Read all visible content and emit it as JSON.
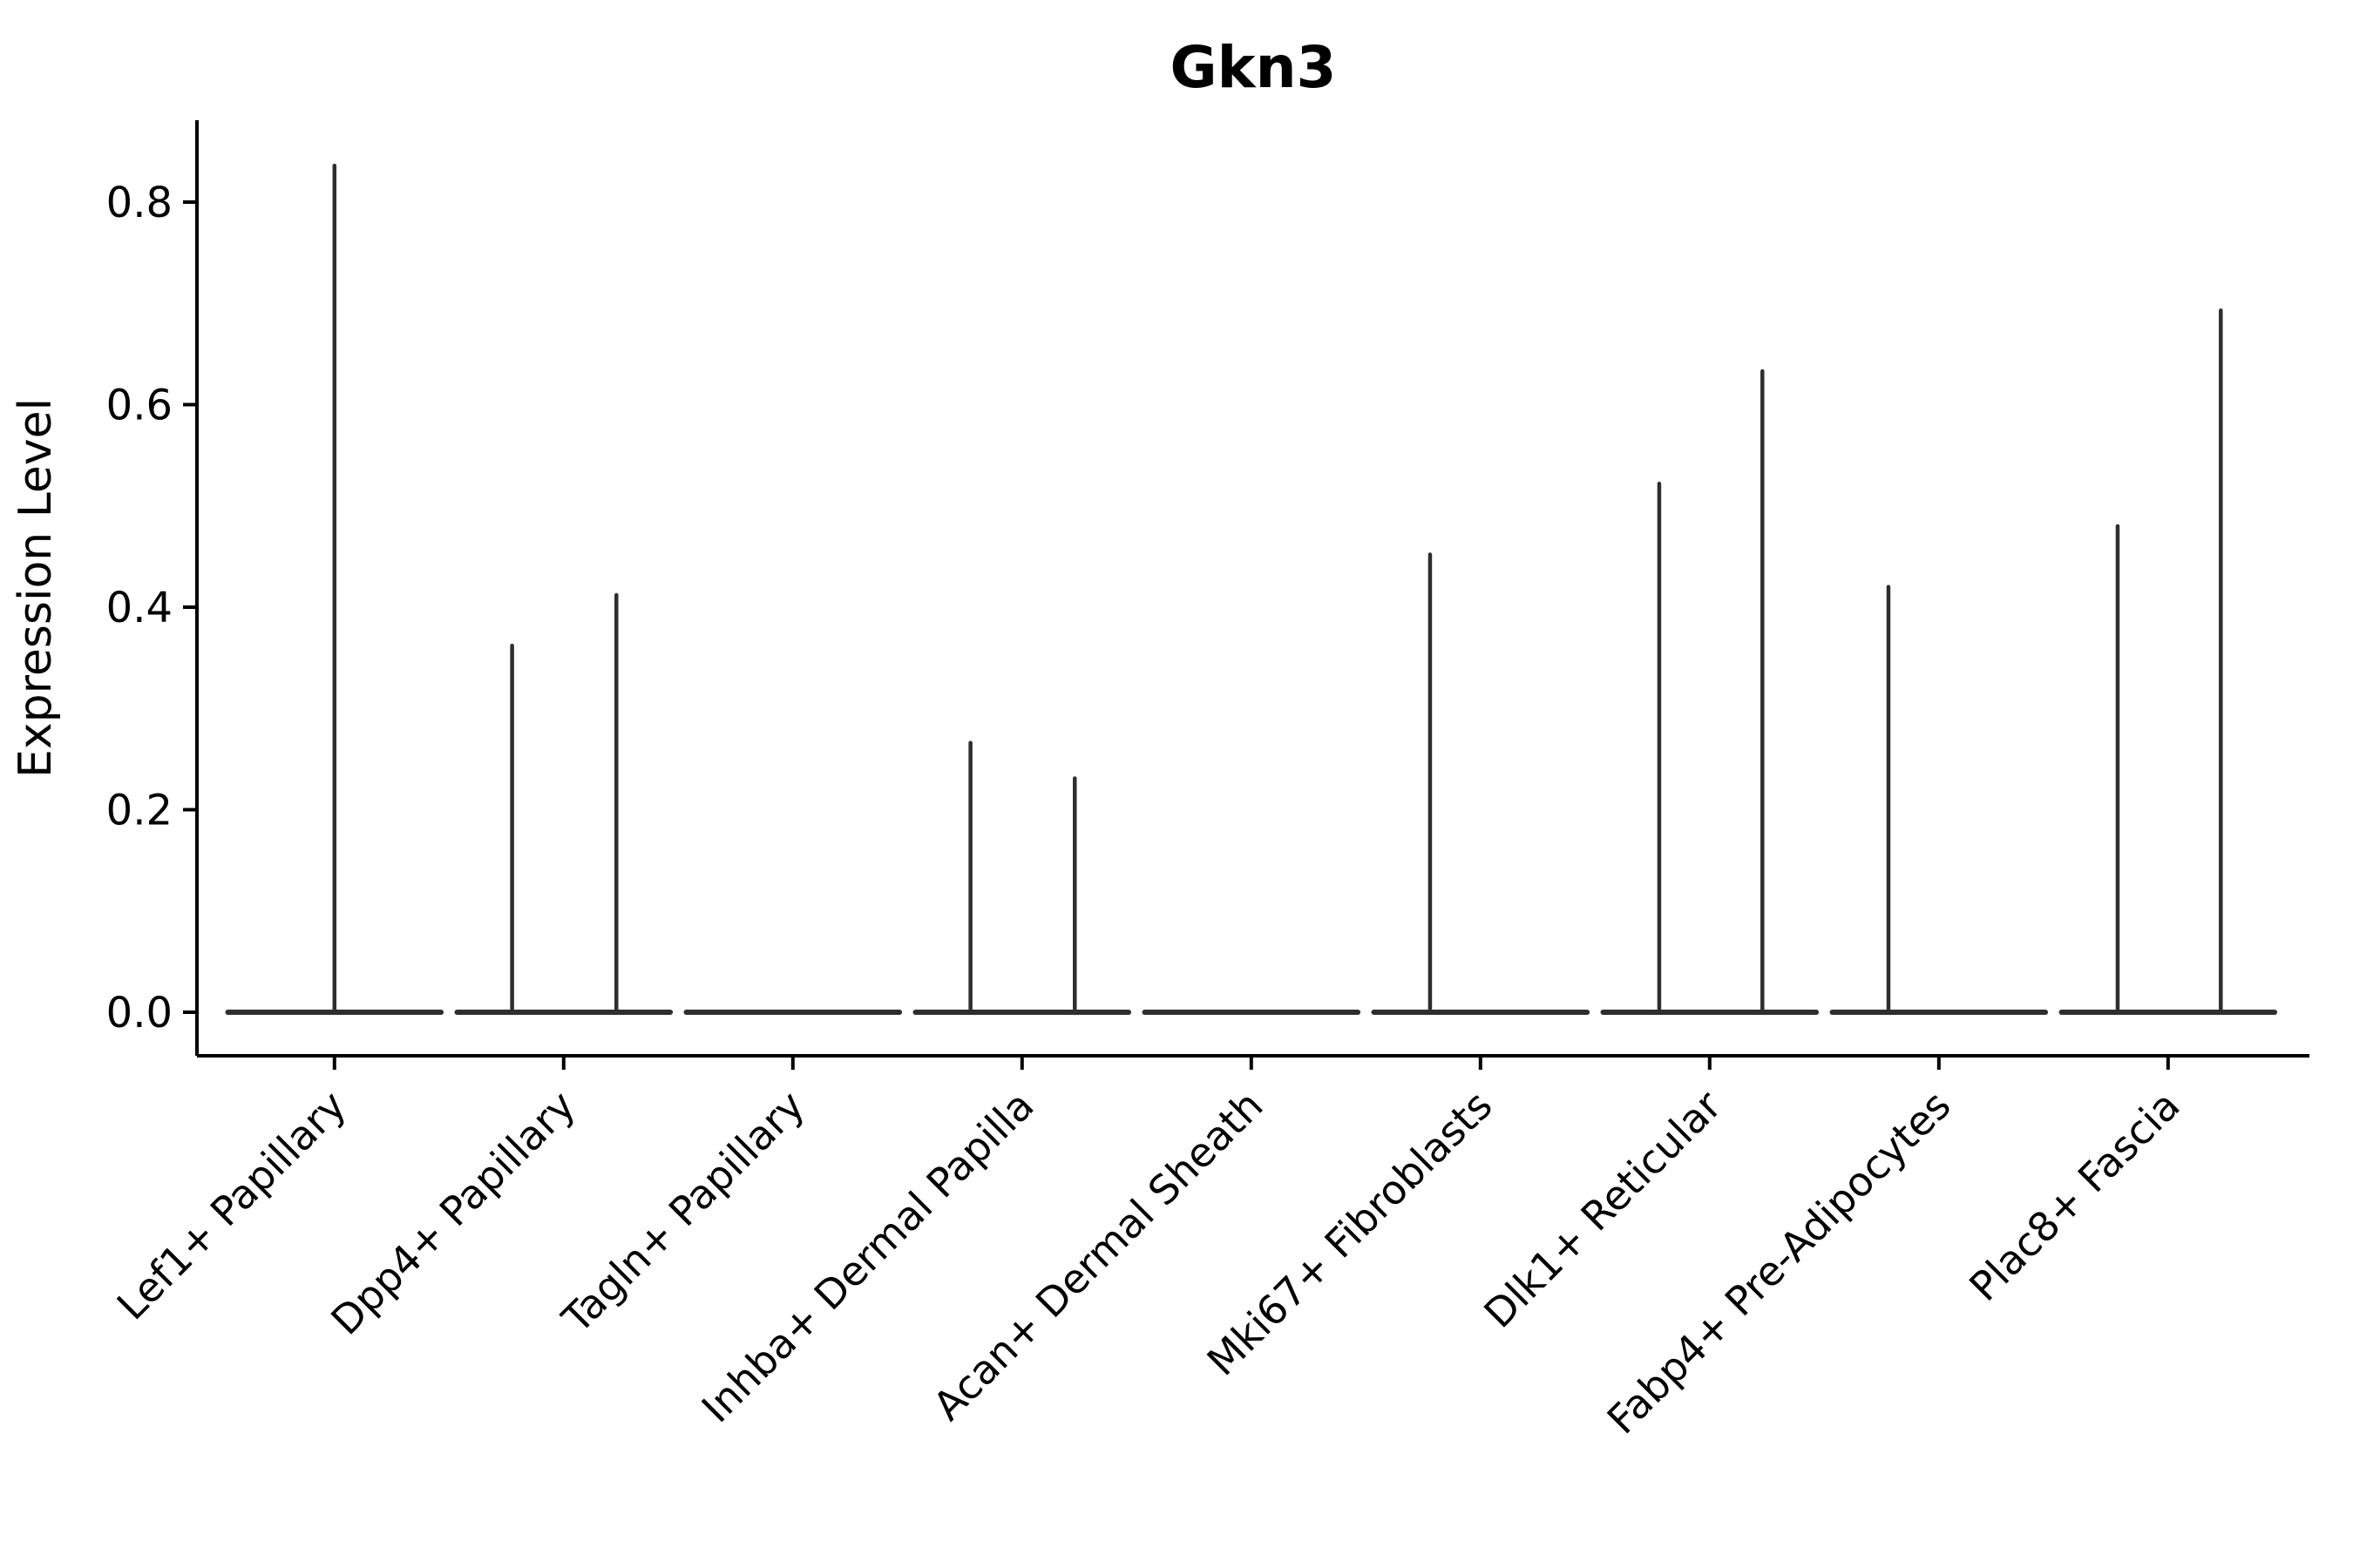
{
  "title": "Gkn3",
  "axes": {
    "ylabel": "Expression Level",
    "ytick_labels": [
      "0.0",
      "0.2",
      "0.4",
      "0.6",
      "0.8"
    ]
  },
  "chart_data": {
    "type": "violin",
    "title": "Gkn3",
    "xlabel": "",
    "ylabel": "Expression Level",
    "categories": [
      "Lef1+ Papillary",
      "Dpp4+ Papillary",
      "Tagln+ Papillary",
      "Inhba+ Dermal Papilla",
      "Acan+ Dermal Sheath",
      "Mki67+ Fibroblasts",
      "Dlk1+ Reticular",
      "Fabp4+ Pre-Adipocytes",
      "Plac8+ Fascia"
    ],
    "yticks": [
      0.0,
      0.2,
      0.4,
      0.6,
      0.8
    ],
    "ylim": [
      -0.043,
      0.881
    ],
    "grid": false,
    "legend": "none",
    "baseline_value": 0.0,
    "violin_halfwidth_frac": 0.465,
    "series": [
      {
        "category": "Lef1+ Papillary",
        "spikes": [
          {
            "offset_frac": 0.0,
            "value": 0.836
          }
        ]
      },
      {
        "category": "Dpp4+ Papillary",
        "spikes": [
          {
            "offset_frac": -0.225,
            "value": 0.362
          },
          {
            "offset_frac": 0.23,
            "value": 0.412
          }
        ]
      },
      {
        "category": "Tagln+ Papillary",
        "spikes": []
      },
      {
        "category": "Inhba+ Dermal Papilla",
        "spikes": [
          {
            "offset_frac": -0.225,
            "value": 0.266
          },
          {
            "offset_frac": 0.23,
            "value": 0.231
          }
        ]
      },
      {
        "category": "Acan+ Dermal Sheath",
        "spikes": []
      },
      {
        "category": "Mki67+ Fibroblasts",
        "spikes": [
          {
            "offset_frac": -0.22,
            "value": 0.452
          }
        ]
      },
      {
        "category": "Dlk1+ Reticular",
        "spikes": [
          {
            "offset_frac": -0.22,
            "value": 0.522
          },
          {
            "offset_frac": 0.23,
            "value": 0.633
          }
        ]
      },
      {
        "category": "Fabp4+ Pre-Adipocytes",
        "spikes": [
          {
            "offset_frac": -0.22,
            "value": 0.42
          }
        ]
      },
      {
        "category": "Plac8+ Fascia",
        "spikes": [
          {
            "offset_frac": -0.22,
            "value": 0.48
          },
          {
            "offset_frac": 0.23,
            "value": 0.693
          }
        ]
      }
    ],
    "colors": {
      "violin_stroke": "#2e2e2e",
      "axis": "#000000",
      "background": "#ffffff"
    }
  }
}
